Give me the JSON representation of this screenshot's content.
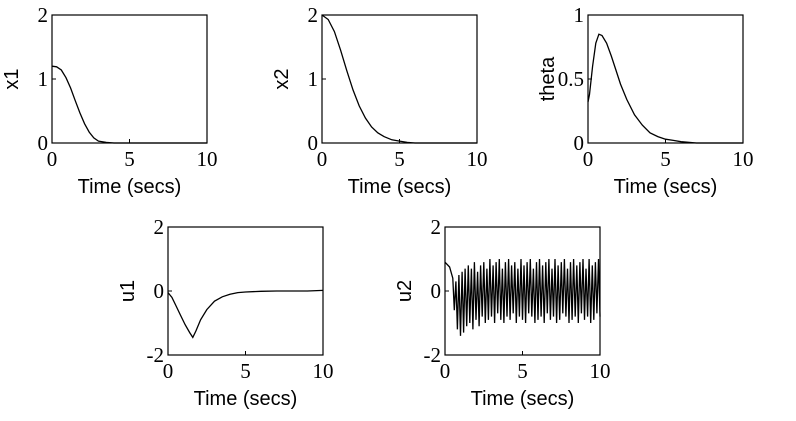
{
  "chart_data": [
    {
      "type": "line",
      "ylabel": "x1",
      "xlabel": "Time (secs)",
      "xlim": [
        0,
        10
      ],
      "ylim": [
        0,
        2
      ],
      "xticks": [
        "0",
        "5",
        "10"
      ],
      "yticks": [
        "0",
        "1",
        "2"
      ],
      "series": [
        {
          "x": [
            0,
            0.3,
            0.6,
            0.9,
            1.2,
            1.5,
            1.8,
            2.1,
            2.4,
            2.7,
            3.0,
            3.5,
            4.0,
            5.0,
            6.0,
            8.0,
            10.0
          ],
          "y": [
            1.2,
            1.19,
            1.14,
            1.02,
            0.86,
            0.66,
            0.47,
            0.3,
            0.17,
            0.08,
            0.03,
            0.01,
            0,
            0,
            0,
            0,
            0
          ]
        }
      ]
    },
    {
      "type": "line",
      "ylabel": "x2",
      "xlabel": "Time (secs)",
      "xlim": [
        0,
        10
      ],
      "ylim": [
        0,
        2
      ],
      "xticks": [
        "0",
        "5",
        "10"
      ],
      "yticks": [
        "0",
        "1",
        "2"
      ],
      "series": [
        {
          "x": [
            0,
            0.4,
            0.8,
            1.2,
            1.6,
            2.0,
            2.4,
            2.8,
            3.2,
            3.6,
            4.0,
            4.5,
            5.0,
            5.5,
            6.0,
            7.0,
            8.0,
            10.0
          ],
          "y": [
            2.0,
            1.93,
            1.74,
            1.45,
            1.13,
            0.83,
            0.58,
            0.39,
            0.25,
            0.16,
            0.1,
            0.05,
            0.03,
            0.01,
            0,
            0,
            0,
            0
          ]
        }
      ]
    },
    {
      "type": "line",
      "ylabel": "theta",
      "xlabel": "Time (secs)",
      "xlim": [
        0,
        10
      ],
      "ylim": [
        0,
        1
      ],
      "xticks": [
        "0",
        "5",
        "10"
      ],
      "yticks": [
        "0",
        "0.5",
        "1"
      ],
      "series": [
        {
          "x": [
            0,
            0.1,
            0.3,
            0.5,
            0.7,
            0.9,
            1.2,
            1.5,
            1.8,
            2.1,
            2.5,
            3.0,
            3.5,
            4.0,
            4.5,
            5.0,
            5.5,
            6.0,
            7.0,
            8.0,
            9.0,
            10.0
          ],
          "y": [
            0.32,
            0.38,
            0.6,
            0.78,
            0.85,
            0.84,
            0.78,
            0.68,
            0.57,
            0.46,
            0.34,
            0.22,
            0.14,
            0.08,
            0.05,
            0.03,
            0.02,
            0.01,
            0,
            0,
            0,
            0
          ]
        }
      ]
    },
    {
      "type": "line",
      "ylabel": "u1",
      "xlabel": "Time (secs)",
      "xlim": [
        0,
        10
      ],
      "ylim": [
        -2,
        2
      ],
      "xticks": [
        "0",
        "5",
        "10"
      ],
      "yticks": [
        "-2",
        "0",
        "2"
      ],
      "series": [
        {
          "x": [
            0,
            0.25,
            0.5,
            0.8,
            1.1,
            1.4,
            1.6,
            1.8,
            2.1,
            2.5,
            3.0,
            3.5,
            4.0,
            4.5,
            5.0,
            6.0,
            7.0,
            8.0,
            9.0,
            10.0
          ],
          "y": [
            -0.05,
            -0.2,
            -0.45,
            -0.75,
            -1.05,
            -1.3,
            -1.45,
            -1.25,
            -0.9,
            -0.58,
            -0.32,
            -0.18,
            -0.1,
            -0.05,
            -0.03,
            -0.01,
            0,
            0,
            0,
            0.02
          ]
        }
      ]
    },
    {
      "type": "line",
      "ylabel": "u2",
      "xlabel": "Time (secs)",
      "xlim": [
        0,
        10
      ],
      "ylim": [
        -2,
        2
      ],
      "xticks": [
        "0",
        "5",
        "10"
      ],
      "yticks": [
        "-2",
        "0",
        "2"
      ],
      "series": [
        {
          "x": [
            0,
            0.3,
            0.5,
            0.6,
            0.7,
            0.8,
            0.9,
            1.0,
            1.1,
            1.2,
            1.3,
            1.4,
            1.5,
            1.6,
            1.7,
            1.8,
            1.9,
            2.0,
            2.1,
            2.2,
            2.3,
            2.4,
            2.5,
            2.6,
            2.7,
            2.8,
            2.9,
            3.0,
            3.1,
            3.2,
            3.3,
            3.4,
            3.5,
            3.6,
            3.7,
            3.8,
            3.9,
            4.0,
            4.1,
            4.2,
            4.3,
            4.4,
            4.5,
            4.6,
            4.7,
            4.8,
            4.9,
            5.0,
            5.1,
            5.2,
            5.3,
            5.4,
            5.5,
            5.6,
            5.7,
            5.8,
            5.9,
            6.0,
            6.1,
            6.2,
            6.3,
            6.4,
            6.5,
            6.6,
            6.7,
            6.8,
            6.9,
            7.0,
            7.1,
            7.2,
            7.3,
            7.4,
            7.5,
            7.6,
            7.7,
            7.8,
            7.9,
            8.0,
            8.1,
            8.2,
            8.3,
            8.4,
            8.5,
            8.6,
            8.7,
            8.8,
            8.9,
            9.0,
            9.1,
            9.2,
            9.3,
            9.4,
            9.5,
            9.6,
            9.7,
            9.8,
            9.9,
            10.0
          ],
          "y": [
            0.9,
            0.75,
            0.4,
            -0.6,
            0.3,
            -1.2,
            0.5,
            -1.4,
            0.6,
            -1.3,
            0.7,
            -1.1,
            0.8,
            -1.0,
            0.7,
            -1.2,
            0.9,
            -0.9,
            0.6,
            -1.1,
            0.8,
            -0.8,
            0.9,
            -1.0,
            0.7,
            -0.9,
            1.0,
            -0.8,
            0.8,
            -1.0,
            0.9,
            -0.7,
            1.0,
            -0.9,
            0.7,
            -1.0,
            0.9,
            -0.8,
            1.0,
            -0.9,
            0.8,
            -0.7,
            0.9,
            -1.0,
            0.7,
            -0.8,
            1.0,
            -0.9,
            0.8,
            -1.0,
            0.9,
            -0.7,
            1.0,
            -0.8,
            0.7,
            -1.0,
            0.9,
            -0.9,
            1.0,
            -0.8,
            0.8,
            -1.0,
            0.9,
            -0.7,
            1.0,
            -0.9,
            0.7,
            -0.8,
            1.0,
            -1.0,
            0.8,
            -0.9,
            0.9,
            -0.7,
            1.0,
            -0.8,
            0.7,
            -1.0,
            0.9,
            -0.9,
            1.0,
            -0.8,
            0.8,
            -1.0,
            0.9,
            -0.7,
            1.0,
            -0.9,
            0.7,
            -0.8,
            1.0,
            -1.0,
            0.8,
            -0.9,
            0.9,
            -0.7,
            1.0,
            -0.8
          ]
        }
      ]
    }
  ]
}
